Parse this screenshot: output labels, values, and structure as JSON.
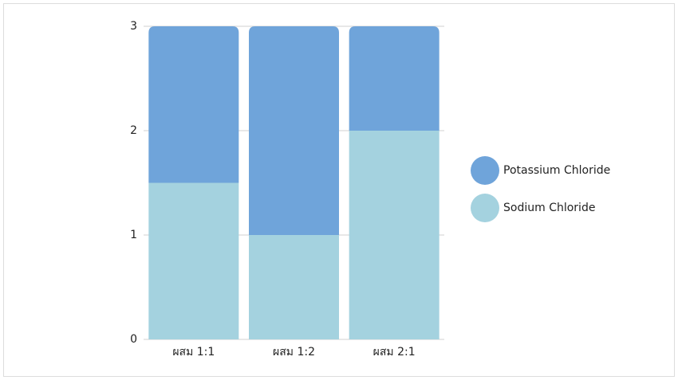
{
  "chart_data": {
    "type": "stacked_bar",
    "categories": [
      "ผสม 1:1",
      "ผสม 1:2",
      "ผสม 2:1"
    ],
    "series": [
      {
        "name": "Sodium Chloride",
        "color": "#a4d2df",
        "values": [
          1.5,
          1,
          2
        ]
      },
      {
        "name": "Potassium Chloride",
        "color": "#6fa4da",
        "values": [
          1.5,
          2,
          1
        ]
      }
    ],
    "ylim": [
      0,
      3
    ],
    "yticks": [
      0,
      1,
      2,
      3
    ],
    "grid": true,
    "legend": "right"
  }
}
